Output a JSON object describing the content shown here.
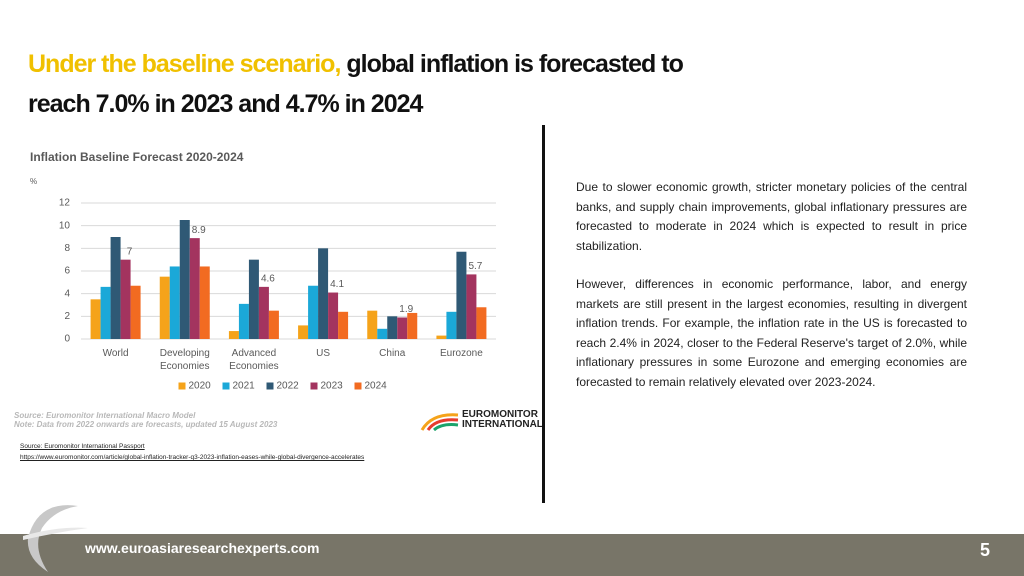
{
  "header": {
    "title_highlight": "Under the baseline scenario,",
    "title_rest": "global inflation is forecasted to reach 7.0% in 2023 and 4.7% in 2024"
  },
  "chart_data": {
    "type": "bar",
    "title": "Inflation Baseline Forecast 2020-2024",
    "y_label": "%",
    "categories": [
      "World",
      "Developing Economies",
      "Advanced Economies",
      "US",
      "China",
      "Eurozone"
    ],
    "series": [
      {
        "name": "2020",
        "color": "#f5a31a",
        "values": [
          3.5,
          5.5,
          0.7,
          1.2,
          2.5,
          0.3
        ]
      },
      {
        "name": "2021",
        "color": "#1ba8d8",
        "values": [
          4.6,
          6.4,
          3.1,
          4.7,
          0.9,
          2.4
        ]
      },
      {
        "name": "2022",
        "color": "#2f5975",
        "values": [
          9.0,
          10.5,
          7.0,
          8.0,
          2.0,
          7.7
        ]
      },
      {
        "name": "2023",
        "color": "#a3345f",
        "values": [
          7,
          8.9,
          4.6,
          4.1,
          1.9,
          5.7
        ],
        "data_labels": true
      },
      {
        "name": "2024",
        "color": "#f26b21",
        "values": [
          4.7,
          6.4,
          2.5,
          2.4,
          2.3,
          2.8
        ]
      }
    ],
    "ylim": [
      0,
      12
    ],
    "yticks": [
      0,
      2,
      4,
      6,
      8,
      10,
      12
    ],
    "grid": true,
    "legend": "bottom",
    "notes": [
      "Source: Euromonitor International Macro Model",
      "Note: Data from 2022 onwards are forecasts, updated 15 August 2023"
    ]
  },
  "logo": {
    "line1": "EUROMONITOR",
    "line2": "INTERNATIONAL"
  },
  "sources": [
    "Source: Euromonitor International Passport",
    "https://www.euromonitor.com/article/global-inflation-tracker-q3-2023-inflation-eases-while-global-divergence-accelerates"
  ],
  "body": [
    "Due to slower economic growth, stricter monetary policies of the central banks, and supply chain improvements, global inflationary pressures are forecasted to moderate in 2024 which is expected to result in price stabilization.",
    "However, differences in economic performance, labor, and energy markets are still present in the largest economies, resulting in divergent inflation trends. For example, the inflation rate in the US is forecasted to reach 2.4% in 2024, closer to the Federal Reserve's target of 2.0%, while inflationary pressures in some Eurozone and emerging economies are forecasted to remain relatively elevated over 2023-2024."
  ],
  "footer": {
    "url": "www.euroasiaresearchexperts.com",
    "page": "5"
  }
}
